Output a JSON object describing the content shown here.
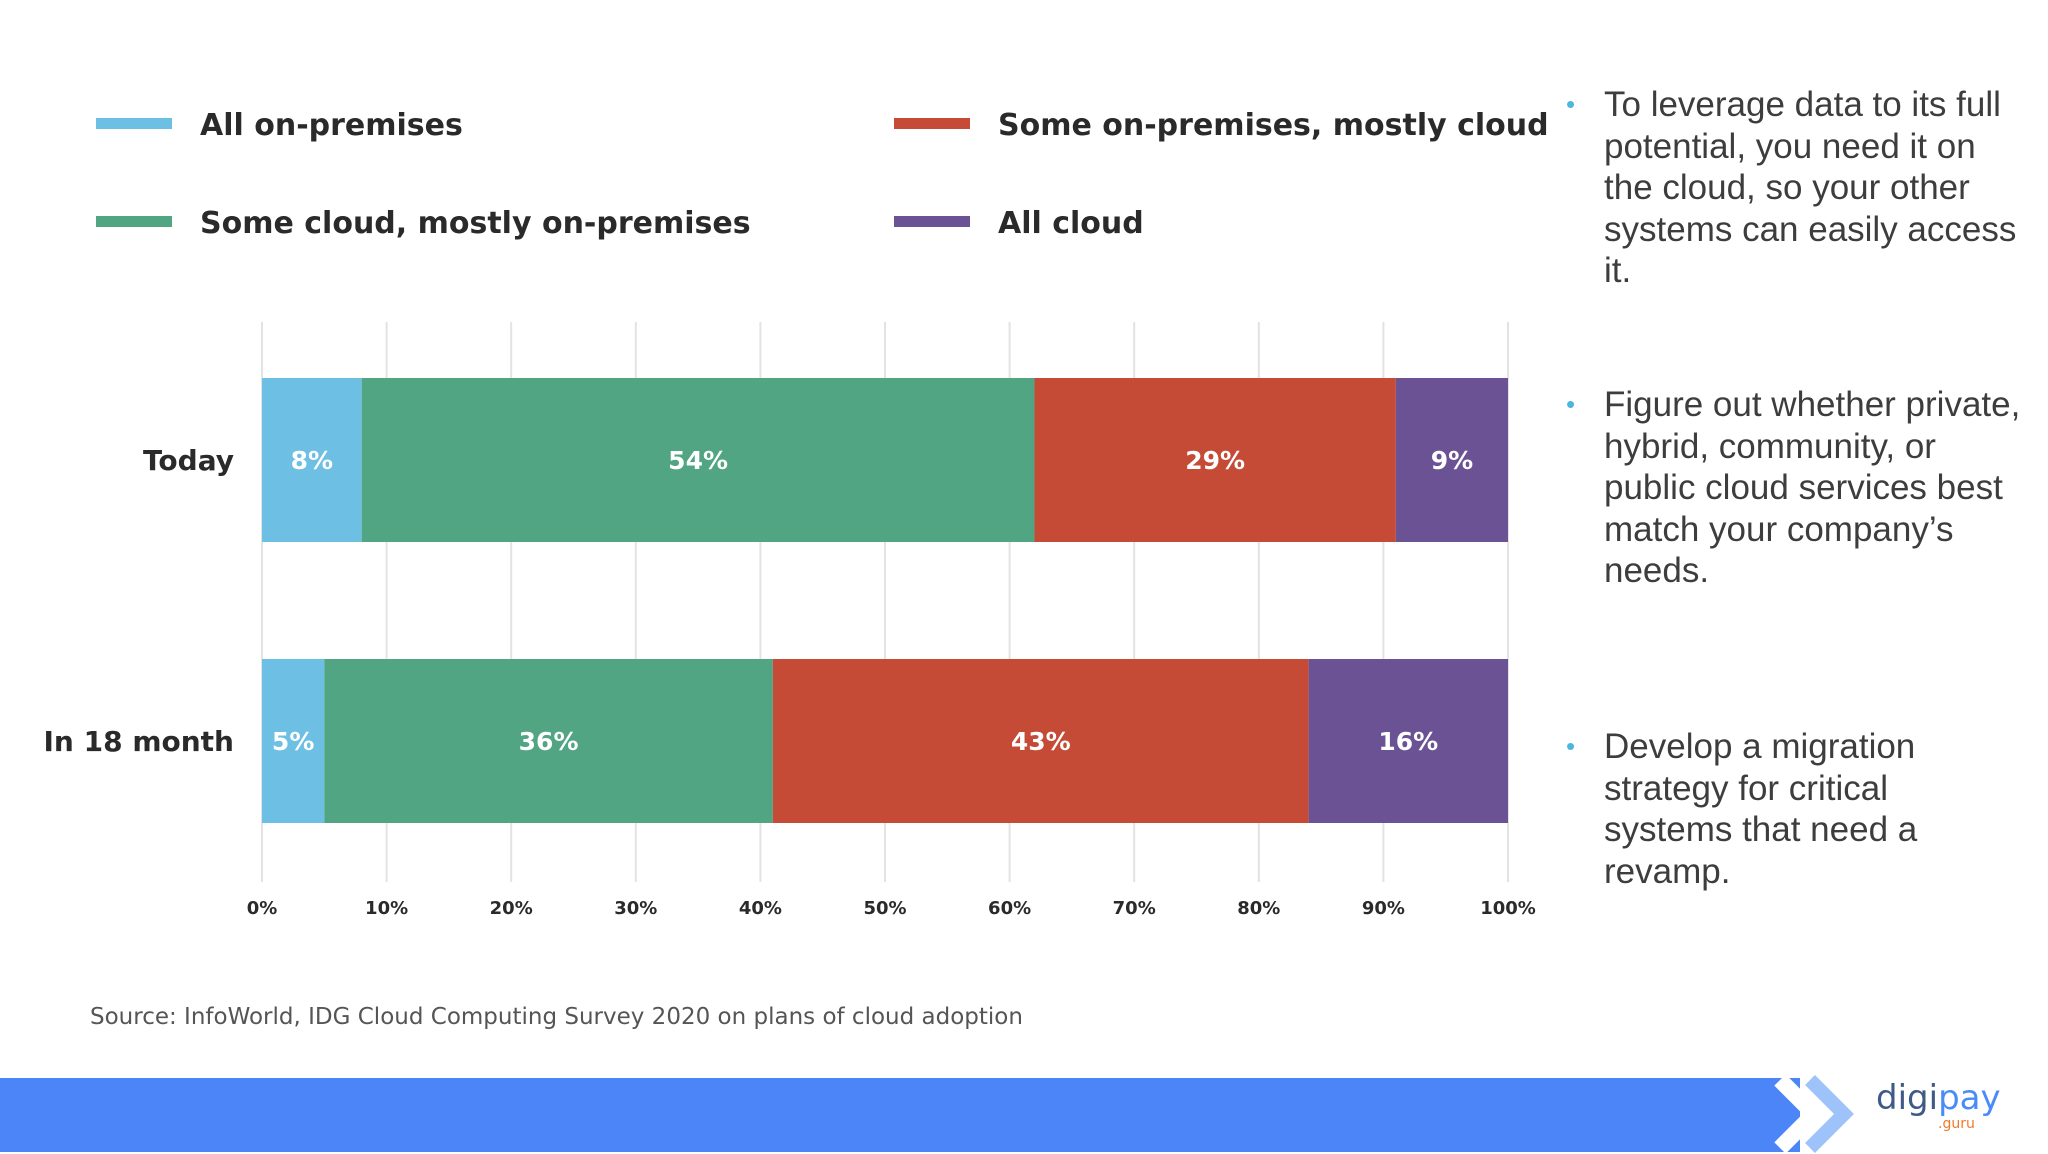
{
  "chart_data": {
    "type": "bar",
    "orientation": "horizontal",
    "stacked": true,
    "categories": [
      "Today",
      "In 18 month"
    ],
    "series": [
      {
        "name": "All on-premises",
        "color": "#6dbfe3",
        "values": [
          8,
          5
        ],
        "labels": [
          "8%",
          "5%"
        ]
      },
      {
        "name": "Some cloud, mostly on-premises",
        "color": "#52a582",
        "values": [
          54,
          36
        ],
        "labels": [
          "54%",
          "36%"
        ]
      },
      {
        "name": "Some on-premises, mostly cloud",
        "color": "#c54b37",
        "values": [
          29,
          43
        ],
        "labels": [
          "29%",
          "43%"
        ]
      },
      {
        "name": "All cloud",
        "color": "#6b5294",
        "values": [
          9,
          16
        ],
        "labels": [
          "9%",
          "16%"
        ]
      }
    ],
    "xlim": [
      0,
      100
    ],
    "xticks": [
      "0%",
      "10%",
      "20%",
      "30%",
      "40%",
      "50%",
      "60%",
      "70%",
      "80%",
      "90%",
      "100%"
    ],
    "grid": true,
    "legend_position": "top",
    "title": "",
    "xlabel": "",
    "ylabel": ""
  },
  "source_text": "Source: InfoWorld, IDG Cloud Computing Survey 2020 on plans of cloud adoption",
  "bullets": [
    "To leverage data to its full potential, you need it on the cloud, so your other systems can easily access it.",
    "Figure out whether private, hybrid, community, or public cloud services best match your company’s needs.",
    "Develop a migration strategy for critical systems that need a revamp."
  ],
  "bullet_marker": "•",
  "logo": {
    "main_prefix": "digi",
    "main_accent": "pay",
    "sub": ".guru"
  },
  "colors": {
    "footer_band": "#4b85f8",
    "bullet_marker": "#4db6dd",
    "chevron": "#7fb0f8"
  }
}
